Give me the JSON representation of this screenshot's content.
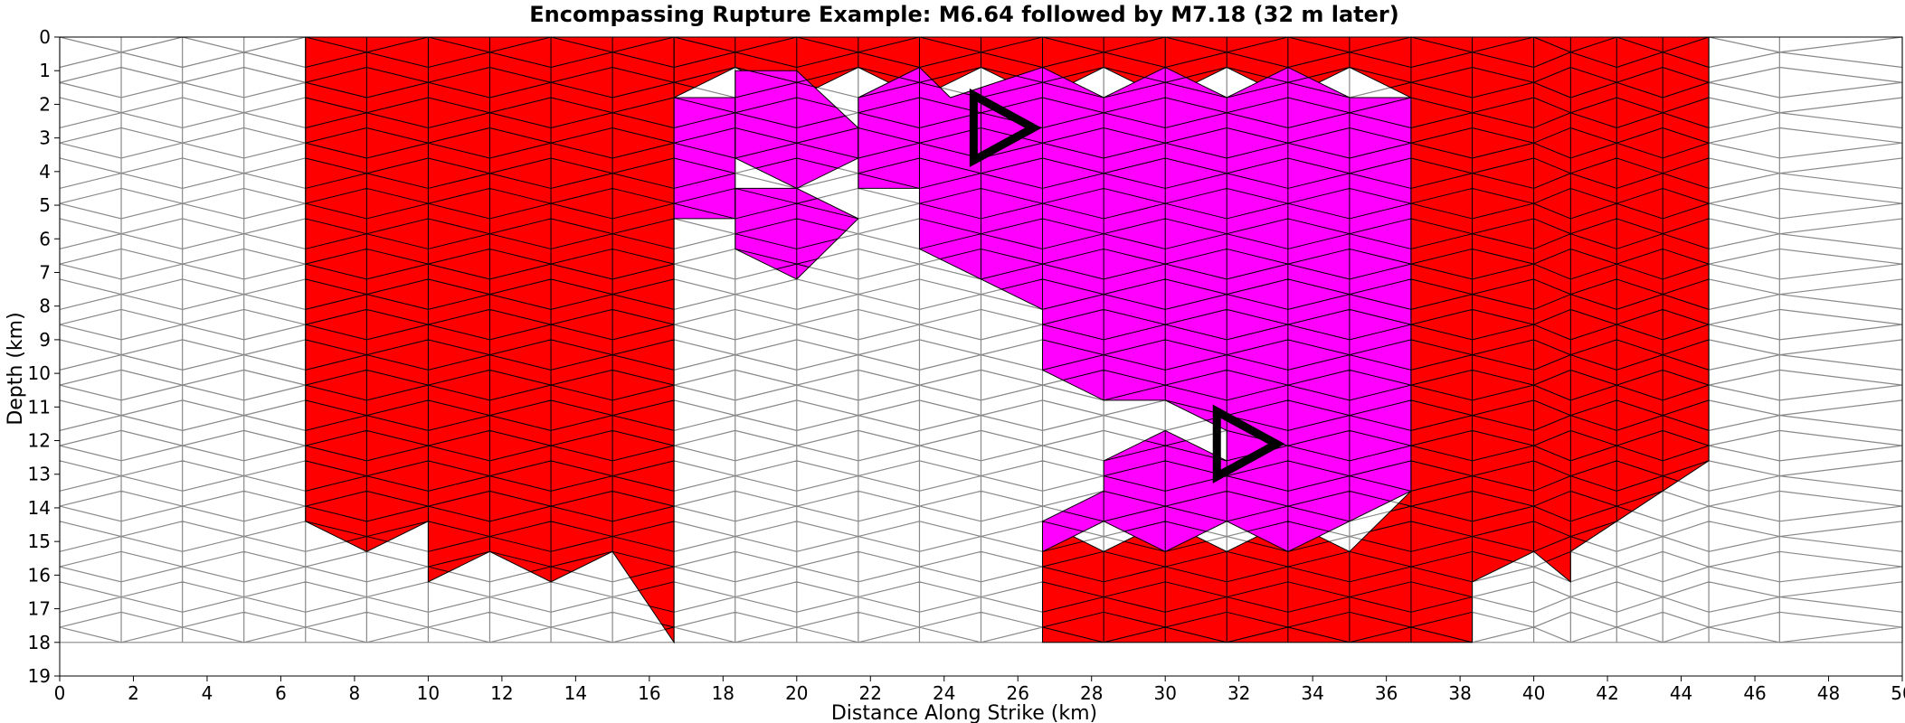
{
  "chart_data": {
    "type": "heatmap",
    "title": "Encompassing Rupture Example: M6.64 followed by M7.18 (32 m later)",
    "xlabel": "Distance Along Strike (km)",
    "ylabel": "Depth (km)",
    "xlim": [
      0,
      50
    ],
    "ylim": [
      19,
      0
    ],
    "x_ticks": [
      "0",
      "2",
      "4",
      "6",
      "8",
      "10",
      "12",
      "14",
      "16",
      "18",
      "20",
      "22",
      "24",
      "26",
      "28",
      "30",
      "32",
      "34",
      "36",
      "38",
      "40",
      "42",
      "44",
      "46",
      "48",
      "50"
    ],
    "y_ticks": [
      "0",
      "1",
      "2",
      "3",
      "4",
      "5",
      "6",
      "7",
      "8",
      "9",
      "10",
      "11",
      "12",
      "13",
      "14",
      "15",
      "16",
      "17",
      "18",
      "19"
    ],
    "grid": false,
    "mesh": {
      "x_columns_km": [
        0,
        1.67,
        3.33,
        5.0,
        6.67,
        8.33,
        10.0,
        11.67,
        13.33,
        15.0,
        16.67,
        18.33,
        20.0,
        21.67,
        23.33,
        25.0,
        26.67,
        28.33,
        30.0,
        31.67,
        33.33,
        35.0,
        36.67,
        38.33,
        40.0,
        41.0,
        42.25,
        43.5,
        44.75,
        46.67,
        50.0
      ],
      "depth_step_km": 0.9,
      "depth_max_km": 18
    },
    "series": [
      {
        "name": "M6.64",
        "color": "#ff00ff",
        "regions": [
          {
            "x": [
              16.67,
              16.67,
              18.33,
              18.33
            ],
            "y": [
              1.8,
              5.4,
              5.4,
              1.8
            ]
          },
          {
            "x": [
              18.33,
              20.0,
              21.67,
              21.67,
              20.0,
              18.33
            ],
            "y": [
              1.0,
              1.0,
              2.7,
              3.6,
              4.5,
              3.6
            ]
          },
          {
            "x": [
              18.33,
              18.33,
              20.0,
              21.67,
              20.0
            ],
            "y": [
              4.5,
              6.3,
              7.2,
              5.4,
              4.5
            ]
          },
          {
            "x": [
              21.67,
              23.33,
              24.17,
              26.67,
              28.33,
              30.0,
              31.67,
              33.33,
              35.0,
              36.67,
              36.67,
              35.0,
              33.33,
              31.67,
              30.0,
              28.33,
              26.67,
              26.67,
              28.33,
              28.33,
              30.0,
              31.67,
              31.67,
              30.0,
              28.33,
              26.67,
              26.67,
              25.0,
              23.33,
              23.33,
              21.67
            ],
            "y": [
              1.8,
              0.9,
              1.8,
              0.9,
              1.8,
              0.9,
              1.8,
              0.9,
              1.8,
              1.8,
              13.5,
              14.4,
              15.3,
              14.4,
              15.3,
              14.4,
              15.3,
              14.4,
              13.5,
              12.6,
              11.7,
              12.6,
              11.7,
              10.8,
              10.8,
              9.9,
              8.1,
              7.2,
              6.3,
              4.5,
              4.5
            ]
          }
        ]
      },
      {
        "name": "M7.18",
        "color": "#ff0000",
        "regions": [
          {
            "x": [
              6.67,
              10.0,
              10.0,
              15.0,
              16.67,
              16.67,
              18.33,
              18.33,
              20.0,
              23.33,
              23.33,
              26.67,
              26.67,
              28.33,
              28.33,
              26.67,
              26.67,
              28.33,
              30.0,
              31.67,
              36.67,
              38.33,
              38.33,
              40.0,
              41.0,
              41.0,
              42.25,
              44.75,
              44.75,
              43.5,
              42.25,
              41.0,
              41.0,
              40.0,
              38.33,
              38.33,
              36.67,
              35.0,
              33.33,
              31.67,
              30.0,
              28.33,
              26.67,
              26.67,
              28.33,
              30.0,
              31.67,
              33.33,
              35.0,
              36.67,
              36.67,
              35.0,
              33.33,
              31.67,
              30.0,
              28.33,
              26.67,
              25.0,
              23.33,
              21.67,
              20.0,
              18.33,
              16.67,
              16.67,
              16.67,
              15.0,
              13.33,
              11.67,
              10.0,
              10.0,
              8.33,
              6.67,
              6.67
            ],
            "y": [
              0.0,
              0.0,
              0.0,
              0.0,
              0.0,
              0.0,
              0.0,
              0.0,
              0.0,
              0.0,
              0.0,
              0.0,
              0.0,
              0.0,
              0.0,
              0.0,
              0.0,
              0.0,
              0.0,
              0.0,
              0.0,
              0.0,
              0.0,
              0.0,
              0.0,
              0.0,
              0.0,
              0.0,
              12.6,
              13.5,
              14.4,
              15.3,
              16.2,
              15.3,
              16.2,
              18.0,
              18.0,
              18.0,
              18.0,
              18.0,
              18.0,
              18.0,
              18.0,
              14.4,
              15.3,
              14.4,
              15.3,
              14.4,
              15.3,
              13.5,
              1.8,
              0.9,
              1.8,
              0.9,
              1.8,
              0.9,
              1.8,
              0.9,
              1.8,
              0.9,
              1.8,
              0.9,
              1.8,
              0.0,
              18.0,
              15.3,
              16.2,
              15.3,
              16.2,
              14.4,
              15.3,
              14.4,
              1.8
            ]
          }
        ]
      }
    ],
    "hypocenters": [
      {
        "x": 24.8,
        "y": 2.7
      },
      {
        "x": 31.4,
        "y": 12.1
      }
    ],
    "colors": {
      "background": "#ffffff",
      "mesh_line": "#888888",
      "filled_line": "#000000",
      "m664": "#ff00ff",
      "m718": "#ff0000"
    }
  }
}
